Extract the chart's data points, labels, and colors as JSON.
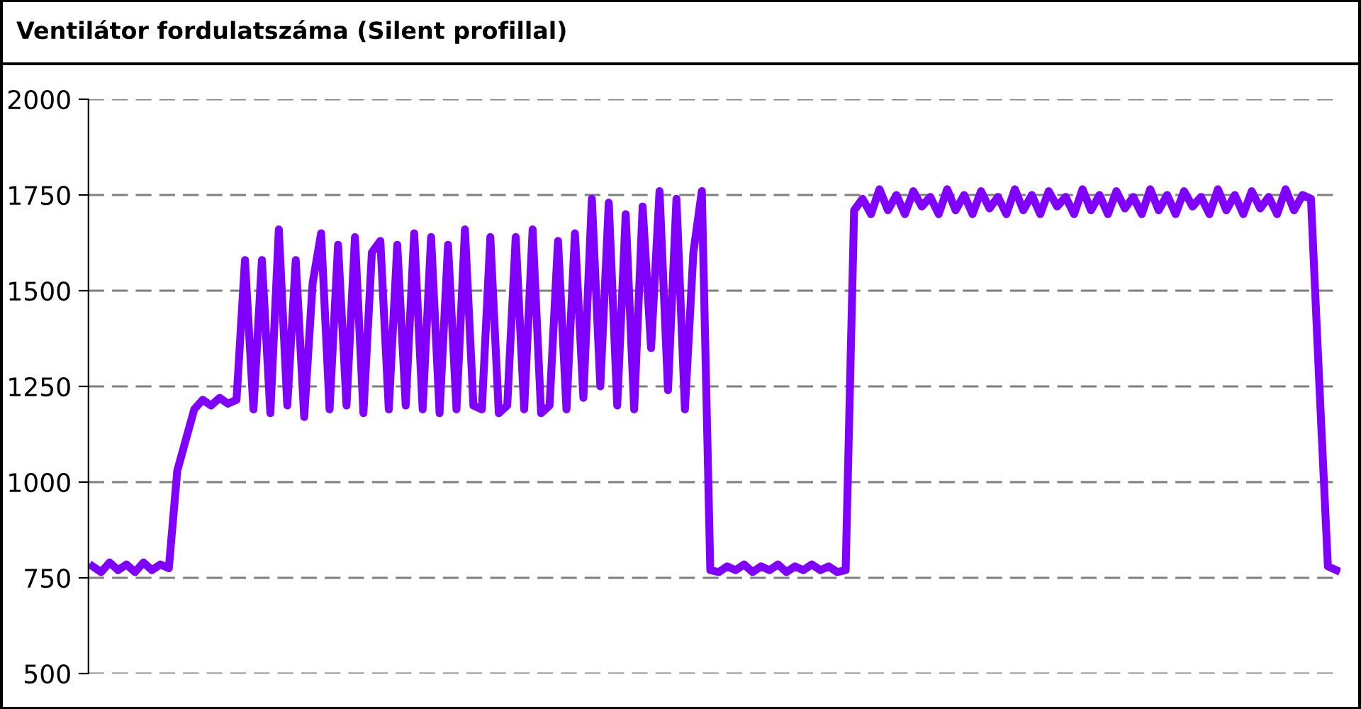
{
  "chart_data": {
    "type": "line",
    "title": "Ventilátor fordulatszáma (Silent profillal)",
    "categories": [
      null,
      null,
      null,
      null,
      null,
      null,
      null,
      null,
      null,
      null,
      null,
      null,
      null,
      null,
      null,
      null,
      null,
      null,
      null,
      null,
      null,
      null,
      null,
      null,
      null,
      null,
      null,
      null,
      null,
      null,
      null,
      null,
      null,
      null,
      null,
      null,
      null,
      null,
      null,
      null,
      null,
      null,
      null,
      null,
      null,
      null,
      null,
      null,
      null,
      null,
      null,
      null,
      null,
      null,
      null,
      null,
      null,
      null,
      null,
      null,
      null,
      null,
      null,
      null,
      null,
      null,
      null,
      null,
      null,
      null,
      null,
      null,
      null,
      null,
      null,
      null,
      null,
      null,
      null,
      null,
      null,
      null,
      null,
      null,
      null,
      null,
      null,
      null,
      null,
      null,
      null,
      null,
      null,
      null,
      null,
      null,
      null,
      null,
      null,
      null,
      null,
      null,
      null,
      null,
      null,
      null,
      null,
      null,
      null,
      null,
      null,
      null,
      null,
      null,
      null,
      null,
      null,
      null,
      null,
      null,
      null,
      null,
      null,
      null,
      null,
      null,
      null,
      null,
      null,
      null,
      null,
      null,
      null,
      null,
      null,
      null,
      null,
      null,
      null,
      null,
      null,
      null,
      null,
      null,
      null,
      null,
      null,
      null
    ],
    "series": [
      {
        "color": "#7f00ff",
        "values": [
          780,
          765,
          790,
          770,
          785,
          765,
          790,
          770,
          785,
          775,
          1030,
          1110,
          1190,
          1215,
          1200,
          1220,
          1205,
          1215,
          1580,
          1190,
          1580,
          1180,
          1660,
          1200,
          1580,
          1170,
          1520,
          1650,
          1190,
          1620,
          1200,
          1640,
          1180,
          1600,
          1630,
          1190,
          1620,
          1200,
          1650,
          1190,
          1640,
          1180,
          1620,
          1190,
          1660,
          1200,
          1190,
          1640,
          1180,
          1200,
          1640,
          1190,
          1660,
          1180,
          1200,
          1630,
          1190,
          1650,
          1220,
          1740,
          1250,
          1730,
          1200,
          1700,
          1190,
          1720,
          1350,
          1760,
          1240,
          1740,
          1190,
          1600,
          1760,
          770,
          765,
          780,
          770,
          785,
          765,
          780,
          770,
          785,
          765,
          780,
          770,
          785,
          770,
          780,
          765,
          770,
          1710,
          1740,
          1700,
          1765,
          1710,
          1750,
          1700,
          1760,
          1720,
          1745,
          1700,
          1765,
          1710,
          1750,
          1700,
          1760,
          1715,
          1745,
          1700,
          1765,
          1710,
          1750,
          1700,
          1760,
          1720,
          1745,
          1700,
          1765,
          1710,
          1750,
          1700,
          1760,
          1715,
          1745,
          1700,
          1765,
          1710,
          1750,
          1700,
          1760,
          1720,
          1745,
          1700,
          1765,
          1710,
          1750,
          1700,
          1760,
          1715,
          1745,
          1700,
          1765,
          1710,
          1750,
          1740,
          1250,
          780,
          770
        ]
      }
    ],
    "ylim": [
      500,
      2000
    ],
    "yticks": [
      500,
      750,
      1000,
      1250,
      1500,
      1750,
      2000
    ],
    "grid": "y",
    "line_style": "solid",
    "marker": "none"
  }
}
